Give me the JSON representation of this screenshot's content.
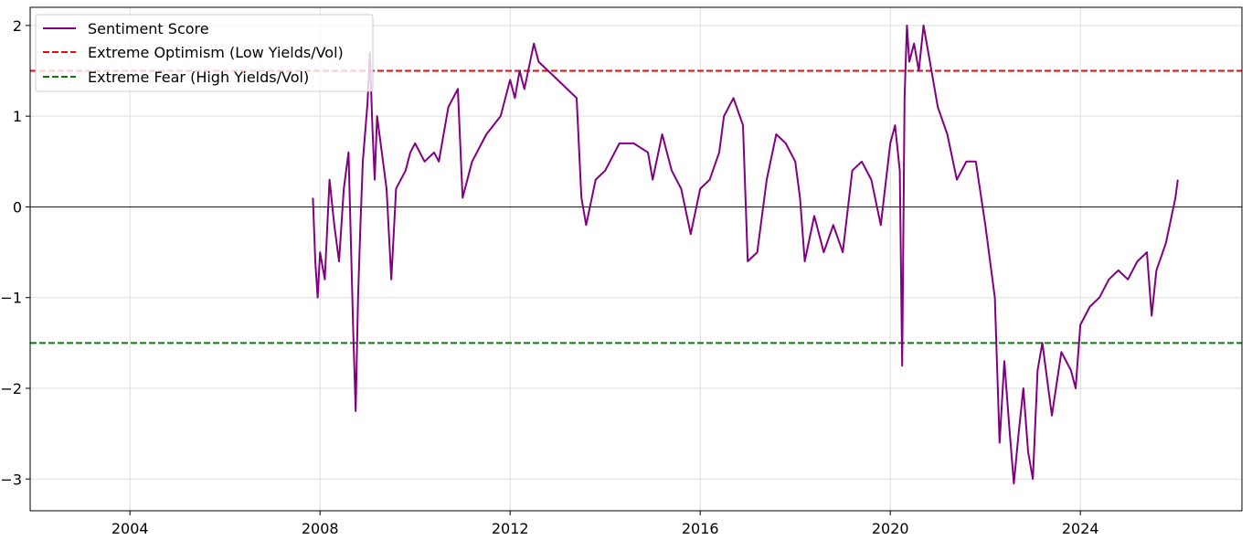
{
  "chart_data": {
    "type": "line",
    "title": "",
    "xlabel": "",
    "ylabel": "",
    "xlim": [
      2001.9,
      2027.4
    ],
    "ylim": [
      -3.35,
      2.2
    ],
    "x_ticks": [
      2004,
      2008,
      2012,
      2016,
      2020,
      2024
    ],
    "x_tick_labels": [
      "2004",
      "2008",
      "2012",
      "2016",
      "2020",
      "2024"
    ],
    "y_ticks": [
      -3,
      -2,
      -1,
      0,
      1,
      2
    ],
    "y_tick_labels": [
      "−3",
      "−2",
      "−1",
      "0",
      "1",
      "2"
    ],
    "grid": true,
    "legend": {
      "position": "top-left",
      "entries": [
        {
          "label": "Sentiment Score",
          "style": "solid",
          "color": "#800080"
        },
        {
          "label": "Extreme Optimism (Low Yields/Vol)",
          "style": "dashed",
          "color": "#ff0000"
        },
        {
          "label": "Extreme Fear (High Yields/Vol)",
          "style": "dashed",
          "color": "#008000"
        }
      ]
    },
    "reference_lines": [
      {
        "name": "Extreme Optimism (Low Yields/Vol)",
        "y": 1.5,
        "color": "#ff0000",
        "style": "dashed"
      },
      {
        "name": "Extreme Fear (High Yields/Vol)",
        "y": -1.5,
        "color": "#008000",
        "style": "dashed"
      },
      {
        "name": "zero",
        "y": 0,
        "color": "#000000",
        "style": "solid"
      }
    ],
    "series": [
      {
        "name": "Sentiment Score",
        "color": "#800080",
        "x": [
          2007.85,
          2007.9,
          2007.95,
          2008.0,
          2008.1,
          2008.2,
          2008.3,
          2008.4,
          2008.5,
          2008.6,
          2008.7,
          2008.75,
          2008.8,
          2008.85,
          2008.9,
          2009.0,
          2009.05,
          2009.1,
          2009.15,
          2009.2,
          2009.3,
          2009.4,
          2009.5,
          2009.6,
          2009.7,
          2009.8,
          2009.9,
          2010.0,
          2010.2,
          2010.4,
          2010.5,
          2010.7,
          2010.9,
          2011.0,
          2011.2,
          2011.5,
          2011.8,
          2012.0,
          2012.1,
          2012.2,
          2012.3,
          2012.5,
          2012.6,
          2012.8,
          2013.0,
          2013.2,
          2013.4,
          2013.5,
          2013.6,
          2013.8,
          2014.0,
          2014.3,
          2014.6,
          2014.9,
          2015.0,
          2015.2,
          2015.4,
          2015.6,
          2015.8,
          2016.0,
          2016.2,
          2016.4,
          2016.5,
          2016.7,
          2016.9,
          2017.0,
          2017.2,
          2017.4,
          2017.6,
          2017.8,
          2018.0,
          2018.1,
          2018.2,
          2018.4,
          2018.6,
          2018.8,
          2019.0,
          2019.2,
          2019.4,
          2019.6,
          2019.8,
          2020.0,
          2020.1,
          2020.2,
          2020.25,
          2020.3,
          2020.35,
          2020.4,
          2020.5,
          2020.6,
          2020.7,
          2020.8,
          2020.9,
          2021.0,
          2021.2,
          2021.4,
          2021.6,
          2021.8,
          2022.0,
          2022.1,
          2022.2,
          2022.3,
          2022.4,
          2022.5,
          2022.6,
          2022.7,
          2022.8,
          2022.9,
          2023.0,
          2023.1,
          2023.2,
          2023.4,
          2023.6,
          2023.8,
          2023.9,
          2024.0,
          2024.2,
          2024.4,
          2024.6,
          2024.8,
          2025.0,
          2025.2,
          2025.4,
          2025.5,
          2025.6,
          2025.8,
          2026.0,
          2026.05
        ],
        "y": [
          0.1,
          -0.6,
          -1.0,
          -0.5,
          -0.8,
          0.3,
          -0.2,
          -0.6,
          0.2,
          0.6,
          -1.4,
          -2.25,
          -1.0,
          -0.2,
          0.5,
          1.15,
          1.7,
          0.9,
          0.3,
          1.0,
          0.6,
          0.2,
          -0.8,
          0.2,
          0.3,
          0.4,
          0.6,
          0.7,
          0.5,
          0.6,
          0.5,
          1.1,
          1.3,
          0.1,
          0.5,
          0.8,
          1.0,
          1.4,
          1.2,
          1.5,
          1.3,
          1.8,
          1.6,
          1.5,
          1.4,
          1.3,
          1.2,
          0.1,
          -0.2,
          0.3,
          0.4,
          0.7,
          0.7,
          0.6,
          0.3,
          0.8,
          0.4,
          0.2,
          -0.3,
          0.2,
          0.3,
          0.6,
          1.0,
          1.2,
          0.9,
          -0.6,
          -0.5,
          0.3,
          0.8,
          0.7,
          0.5,
          0.1,
          -0.6,
          -0.1,
          -0.5,
          -0.2,
          -0.5,
          0.4,
          0.5,
          0.3,
          -0.2,
          0.7,
          0.9,
          0.4,
          -1.75,
          1.2,
          2.0,
          1.6,
          1.8,
          1.5,
          2.0,
          1.7,
          1.4,
          1.1,
          0.8,
          0.3,
          0.5,
          0.5,
          -0.2,
          -0.6,
          -1.0,
          -2.6,
          -1.7,
          -2.4,
          -3.05,
          -2.5,
          -2.0,
          -2.7,
          -3.0,
          -1.8,
          -1.5,
          -2.3,
          -1.6,
          -1.8,
          -2.0,
          -1.3,
          -1.1,
          -1.0,
          -0.8,
          -0.7,
          -0.8,
          -0.6,
          -0.5,
          -1.2,
          -0.7,
          -0.4,
          0.1,
          0.3
        ]
      }
    ]
  }
}
